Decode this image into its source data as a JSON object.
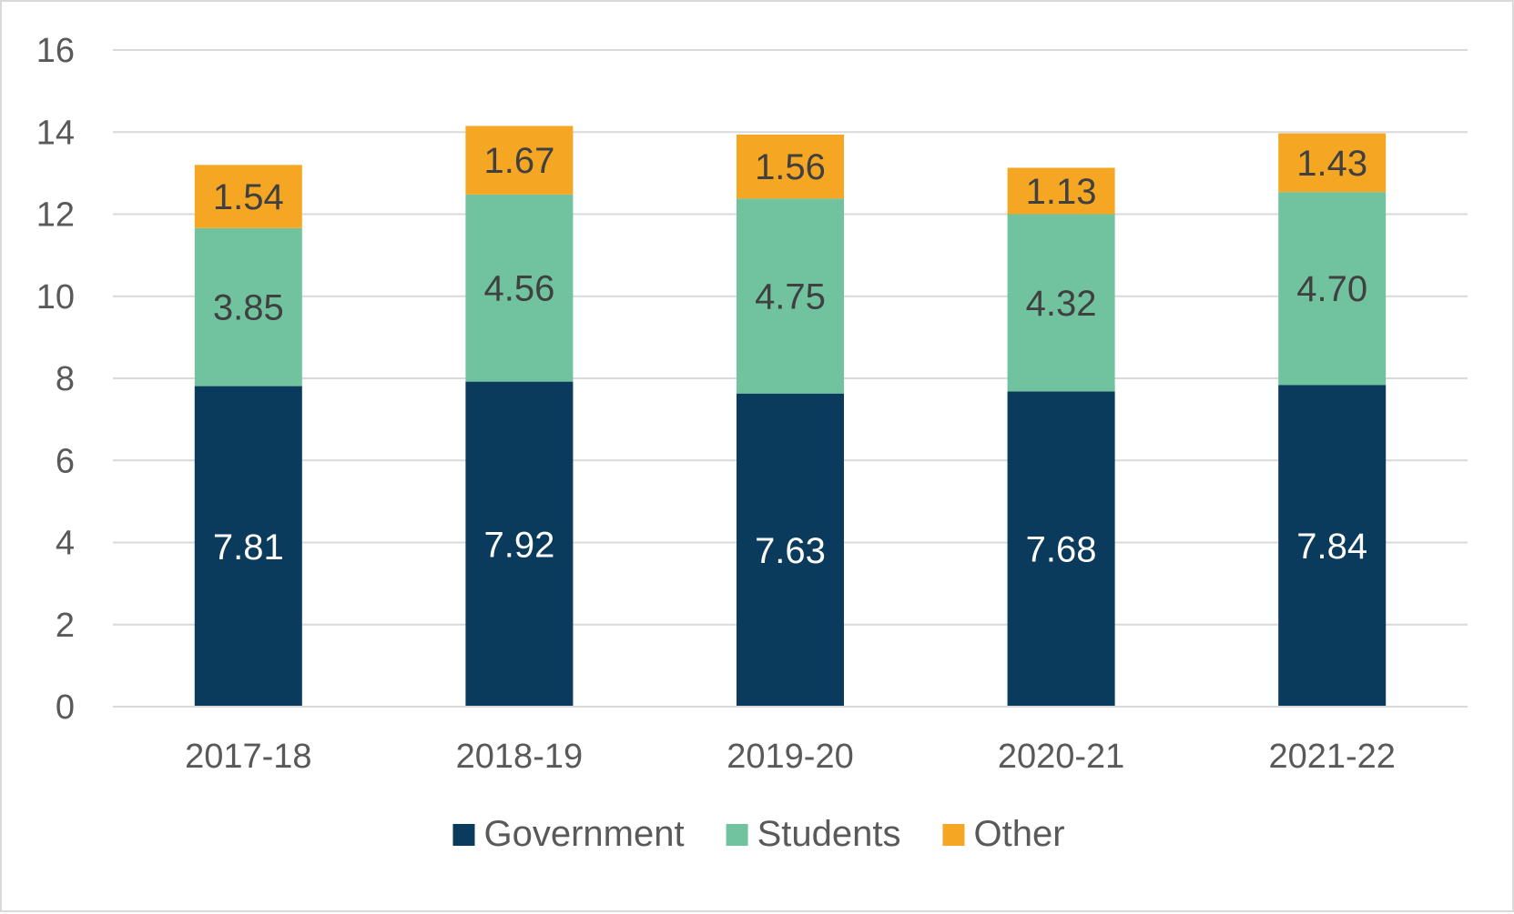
{
  "chart_data": {
    "type": "bar",
    "stacked": true,
    "categories": [
      "2017-18",
      "2018-19",
      "2019-20",
      "2020-21",
      "2021-22"
    ],
    "series": [
      {
        "name": "Government",
        "values": [
          7.81,
          7.92,
          7.63,
          7.68,
          7.84
        ],
        "labels": [
          "7.81",
          "7.92",
          "7.63",
          "7.68",
          "7.84"
        ],
        "color": "#0a3a5c",
        "label_color": "#ffffff"
      },
      {
        "name": "Students",
        "values": [
          3.85,
          4.56,
          4.75,
          4.32,
          4.7
        ],
        "labels": [
          "3.85",
          "4.56",
          "4.75",
          "4.32",
          "4.70"
        ],
        "color": "#71c29e",
        "label_color": "#404040"
      },
      {
        "name": "Other",
        "values": [
          1.54,
          1.67,
          1.56,
          1.13,
          1.43
        ],
        "labels": [
          "1.54",
          "1.67",
          "1.56",
          "1.13",
          "1.43"
        ],
        "color": "#f5a623",
        "label_color": "#404040"
      }
    ],
    "title": "",
    "xlabel": "",
    "ylabel": "",
    "ylim": [
      0,
      16
    ],
    "yticks": [
      "0",
      "2",
      "4",
      "6",
      "8",
      "10",
      "12",
      "14",
      "16"
    ],
    "grid": true,
    "legend_position": "bottom"
  }
}
